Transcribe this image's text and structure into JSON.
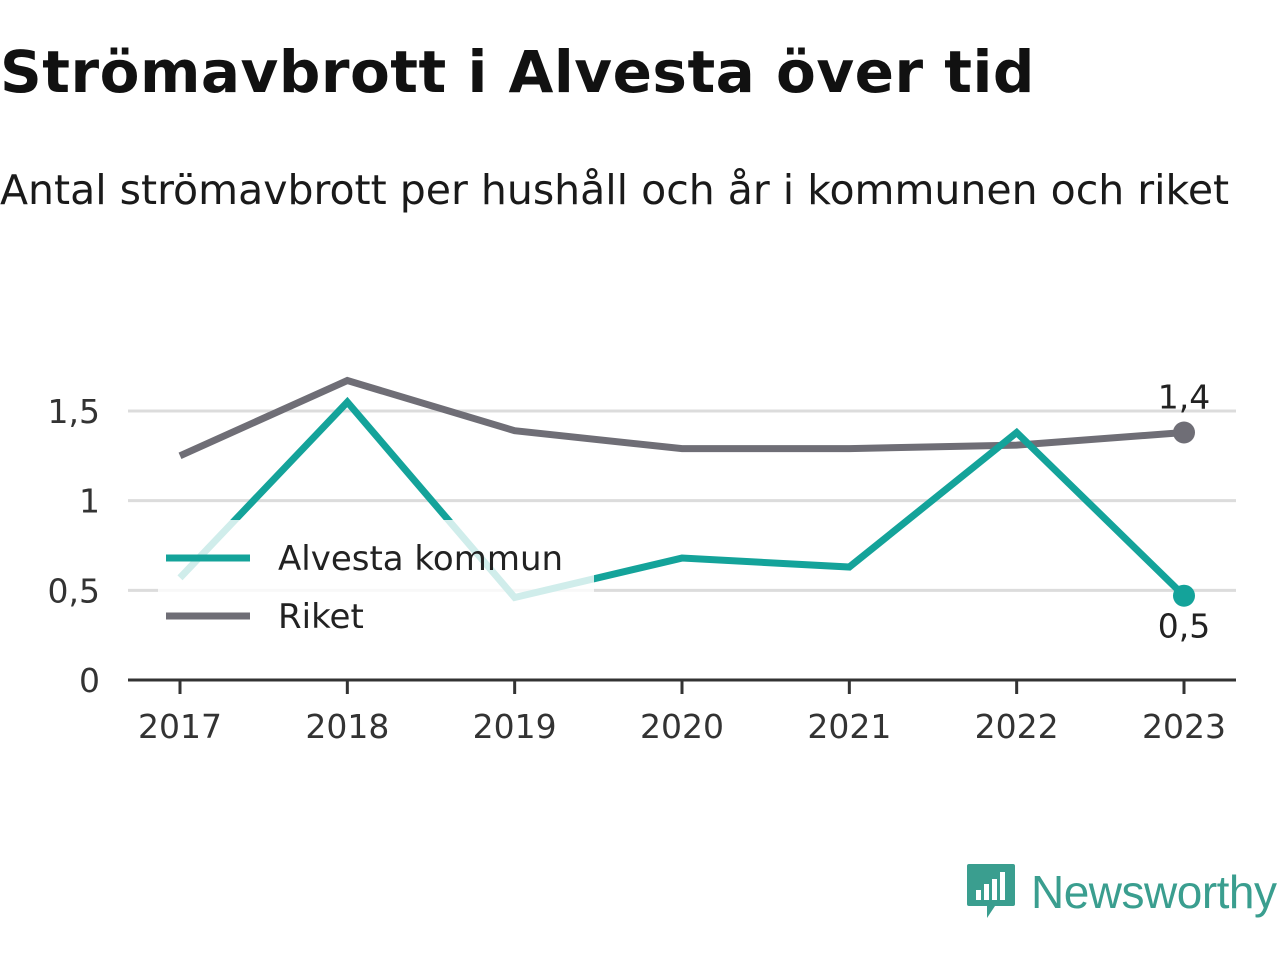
{
  "title": "Strömavbrott i Alvesta över tid",
  "subtitle": "Antal strömavbrott per hushåll och år i kommunen och riket",
  "brand": {
    "name": "Newsworthy",
    "icon": "newsworthy-logo-icon",
    "color": "#3a9e8f"
  },
  "chart_data": {
    "type": "line",
    "categories": [
      "2017",
      "2018",
      "2019",
      "2020",
      "2021",
      "2022",
      "2023"
    ],
    "ylim": [
      0,
      1.7
    ],
    "yticks": [
      {
        "value": 0,
        "label": "0"
      },
      {
        "value": 0.5,
        "label": "0,5"
      },
      {
        "value": 1,
        "label": "1"
      },
      {
        "value": 1.5,
        "label": "1,5"
      }
    ],
    "grid": true,
    "legend_position": "left-middle",
    "series": [
      {
        "name": "Alvesta kommun",
        "color": "#14a39a",
        "values": [
          0.57,
          1.55,
          0.46,
          0.68,
          0.63,
          1.38,
          0.47
        ],
        "end_label": "0,5",
        "end_label_position": "below"
      },
      {
        "name": "Riket",
        "color": "#6f6e76",
        "values": [
          1.25,
          1.67,
          1.39,
          1.29,
          1.29,
          1.31,
          1.38
        ],
        "end_label": "1,4",
        "end_label_position": "above"
      }
    ]
  }
}
